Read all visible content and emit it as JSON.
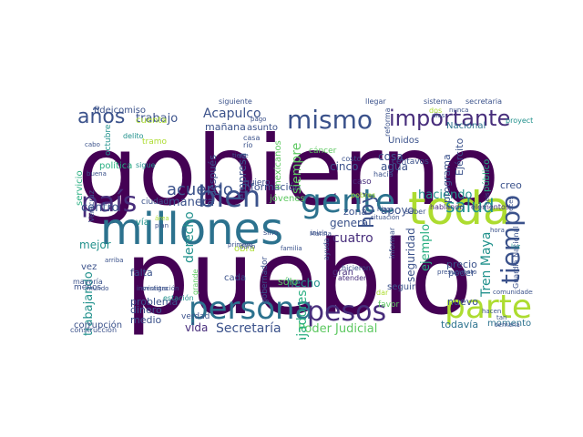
{
  "words": [
    "gobierno",
    "pueblo",
    "millones",
    "toda",
    "gente",
    "persona",
    "país",
    "pesos",
    "parte",
    "mismo",
    "importante",
    "bien",
    "hoy",
    "tiempo",
    "años",
    "salud",
    "acuerdo",
    "Acapulco",
    "trabajo",
    "Secretaría",
    "Poder Judicial",
    "trabajadores",
    "haciendo",
    "Tren Maya",
    "ejemplo",
    "seguridad",
    "cuatro",
    "general",
    "apoyo",
    "agua",
    "cosa",
    "cinco",
    "zona",
    "información",
    "manera",
    "centro",
    "mejor",
    "trabajando",
    "derecho",
    "empresa",
    "siempre",
    "después",
    "hecho",
    "vida",
    "medio",
    "dinero",
    "problema",
    "corrupción",
    "gobernador",
    "falta",
    "cada",
    "obra",
    "Unidos",
    "Nacional",
    "programa",
    "Ejército",
    "creo",
    "nuevo",
    "precio",
    "poder",
    "todavía",
    "momento",
    "fideicomiso",
    "mañana",
    "asunto",
    "servicio",
    "política",
    "sólo",
    "jóvenes",
    "vía",
    "vez",
    "menos",
    "construcción",
    "estación",
    "mayoría",
    "favor",
    "gran",
    "seguir",
    "público",
    "Guardia Nacional",
    "hablando",
    "elementos",
    "octubre",
    "siguiente",
    "llegar",
    "reforma",
    "sistema",
    "secretaria",
    "proyecto",
    "Veracruz",
    "ciudad",
    "quiero",
    "caso",
    "casa",
    "tramo",
    "río",
    "cuenta",
    "centavos",
    "hacia",
    "hizo",
    "informar",
    "hicieron",
    "atender",
    "comunidades",
    "semana",
    "tan",
    "días",
    "mexicanos",
    "cáncer",
    "sino",
    "ayuda",
    "costo",
    "dos",
    "saber",
    "presupuesto",
    "primero",
    "Marina",
    "familia",
    "grande",
    "investigación",
    "ministro",
    "delito",
    "cabo",
    "sigue",
    "buena",
    "arriba",
    "mundo",
    "hacen",
    "verdad",
    "dar",
    "pobres",
    "luz",
    "hora",
    "área",
    "plan",
    "seis",
    "veces",
    "situación",
    "inicio",
    "pago",
    "nunca",
    "daño",
    "tiene",
    "decir"
  ],
  "colors": {
    "dark_purple": "#440154",
    "purple": "#472d7b",
    "indigo": "#3b528b",
    "blue": "#2c728e",
    "teal": "#21918c",
    "green": "#28ae80",
    "light_green": "#5ec962",
    "lime": "#addc30",
    "yellow": "#fde725"
  }
}
